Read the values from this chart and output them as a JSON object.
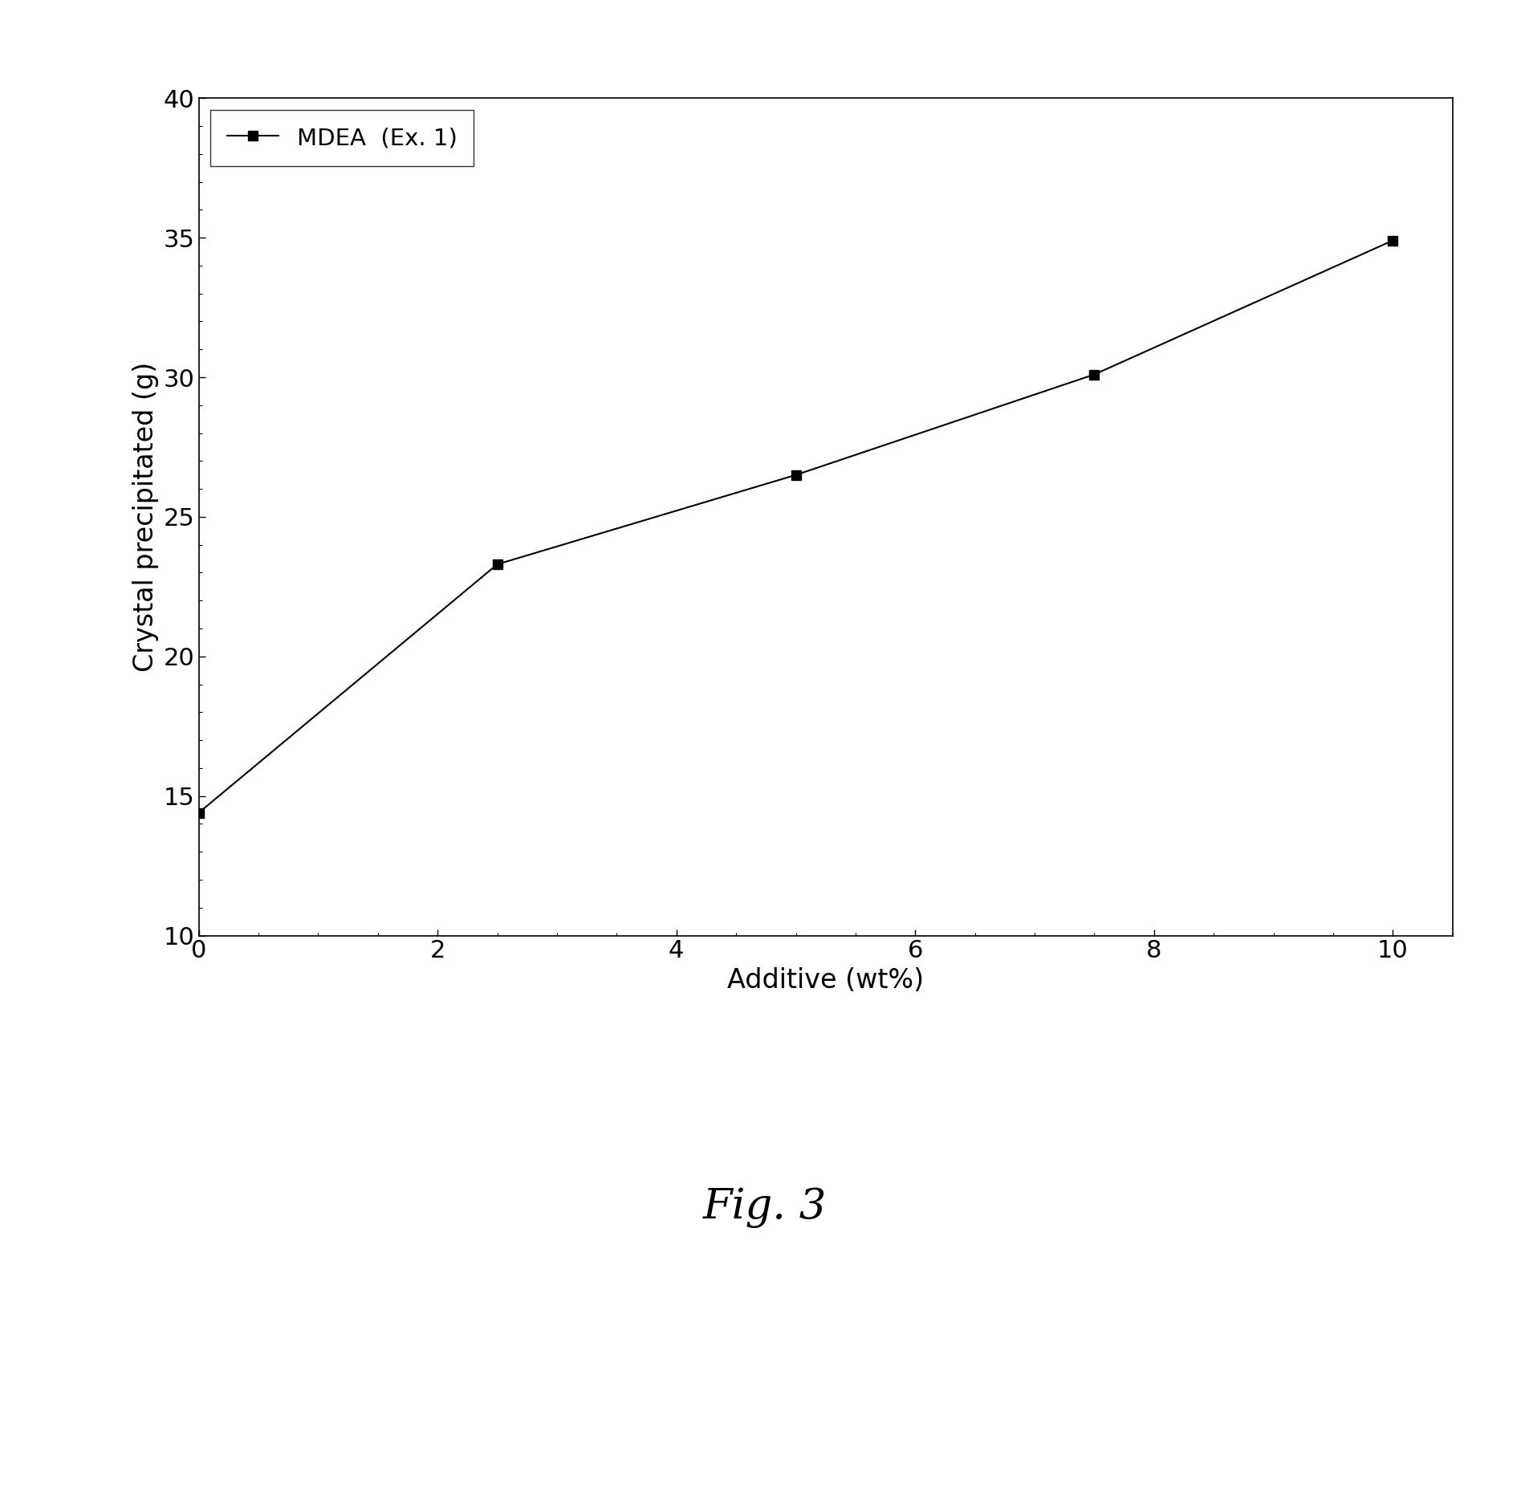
{
  "x": [
    0,
    2.5,
    5,
    7.5,
    10
  ],
  "y": [
    14.4,
    23.3,
    26.5,
    30.1,
    34.9
  ],
  "xlabel": "Additive (wt%)",
  "ylabel": "Crystal precipitated (g)",
  "legend_label": "MDEA  (Ex. 1)",
  "xlim": [
    0,
    10.5
  ],
  "ylim": [
    10,
    40
  ],
  "xticks": [
    0,
    2,
    4,
    6,
    8,
    10
  ],
  "yticks": [
    10,
    15,
    20,
    25,
    30,
    35,
    40
  ],
  "line_color": "#000000",
  "marker": "s",
  "marker_color": "#000000",
  "marker_size": 9,
  "line_width": 1.5,
  "fig_caption": "Fig. 3",
  "caption_fontsize": 38,
  "xlabel_fontsize": 24,
  "ylabel_fontsize": 24,
  "tick_fontsize": 22,
  "legend_fontsize": 21,
  "background_color": "#ffffff"
}
